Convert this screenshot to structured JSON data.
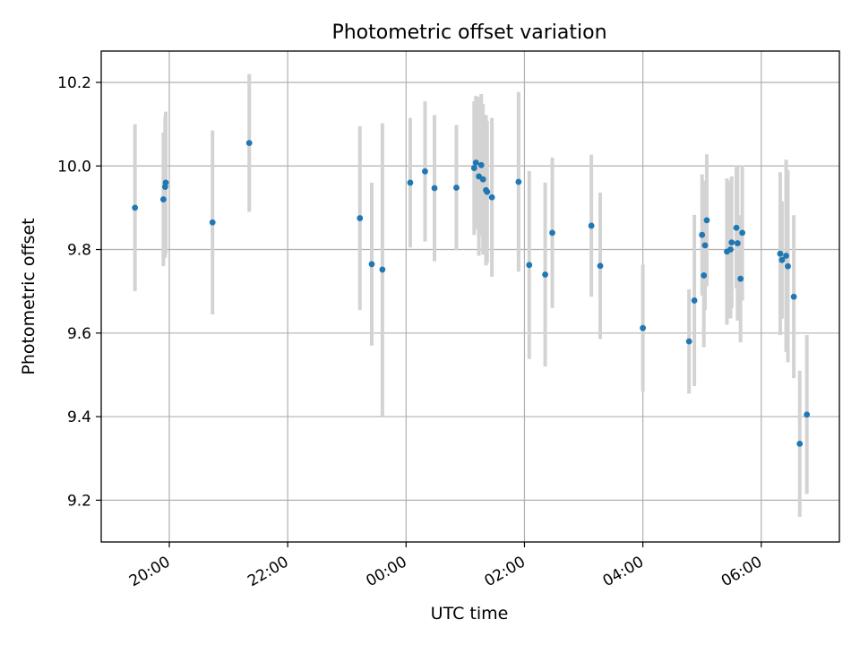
{
  "chart_data": {
    "type": "scatter",
    "title": "Photometric offset variation",
    "xlabel": "UTC time",
    "ylabel": "Photometric offset",
    "x_unit": "hours since midnight UTC (negative = previous day)",
    "xlim": [
      -5.15,
      7.32
    ],
    "ylim": [
      9.1,
      10.275
    ],
    "x_ticks": [
      {
        "value": -4,
        "label": "20:00"
      },
      {
        "value": -2,
        "label": "22:00"
      },
      {
        "value": 0,
        "label": "00:00"
      },
      {
        "value": 2,
        "label": "02:00"
      },
      {
        "value": 4,
        "label": "04:00"
      },
      {
        "value": 6,
        "label": "06:00"
      }
    ],
    "y_ticks": [
      {
        "value": 9.2,
        "label": "9.2"
      },
      {
        "value": 9.4,
        "label": "9.4"
      },
      {
        "value": 9.6,
        "label": "9.6"
      },
      {
        "value": 9.8,
        "label": "9.8"
      },
      {
        "value": 10.0,
        "label": "10.0"
      },
      {
        "value": 10.2,
        "label": "10.2"
      }
    ],
    "grid": true,
    "marker_color": "#1f77b4",
    "errorbar_color": "#d3d3d3",
    "points": [
      {
        "x": -4.58,
        "y": 9.9,
        "err": 0.2
      },
      {
        "x": -4.1,
        "y": 9.92,
        "err": 0.16
      },
      {
        "x": -4.07,
        "y": 9.95,
        "err": 0.17
      },
      {
        "x": -4.06,
        "y": 9.96,
        "err": 0.17
      },
      {
        "x": -3.27,
        "y": 9.865,
        "err": 0.22
      },
      {
        "x": -2.65,
        "y": 10.055,
        "err": 0.165
      },
      {
        "x": -0.78,
        "y": 9.875,
        "err": 0.22
      },
      {
        "x": -0.58,
        "y": 9.765,
        "err": 0.195
      },
      {
        "x": -0.4,
        "y": 9.752,
        "err": 0.35
      },
      {
        "x": 0.07,
        "y": 9.96,
        "err": 0.155
      },
      {
        "x": 0.32,
        "y": 9.987,
        "err": 0.168
      },
      {
        "x": 0.48,
        "y": 9.947,
        "err": 0.175
      },
      {
        "x": 0.85,
        "y": 9.948,
        "err": 0.15
      },
      {
        "x": 1.15,
        "y": 9.995,
        "err": 0.16
      },
      {
        "x": 1.18,
        "y": 10.008,
        "err": 0.16
      },
      {
        "x": 1.23,
        "y": 9.975,
        "err": 0.19
      },
      {
        "x": 1.27,
        "y": 10.002,
        "err": 0.17
      },
      {
        "x": 1.3,
        "y": 9.968,
        "err": 0.18
      },
      {
        "x": 1.35,
        "y": 9.942,
        "err": 0.18
      },
      {
        "x": 1.37,
        "y": 9.938,
        "err": 0.17
      },
      {
        "x": 1.45,
        "y": 9.925,
        "err": 0.19
      },
      {
        "x": 1.9,
        "y": 9.962,
        "err": 0.215
      },
      {
        "x": 2.08,
        "y": 9.763,
        "err": 0.225
      },
      {
        "x": 2.35,
        "y": 9.74,
        "err": 0.22
      },
      {
        "x": 2.47,
        "y": 9.84,
        "err": 0.18
      },
      {
        "x": 3.13,
        "y": 9.857,
        "err": 0.17
      },
      {
        "x": 3.28,
        "y": 9.761,
        "err": 0.175
      },
      {
        "x": 4.0,
        "y": 9.612,
        "err": 0.152
      },
      {
        "x": 4.78,
        "y": 9.58,
        "err": 0.125
      },
      {
        "x": 4.87,
        "y": 9.678,
        "err": 0.205
      },
      {
        "x": 5.0,
        "y": 9.835,
        "err": 0.145
      },
      {
        "x": 5.03,
        "y": 9.738,
        "err": 0.172
      },
      {
        "x": 5.05,
        "y": 9.81,
        "err": 0.155
      },
      {
        "x": 5.08,
        "y": 9.87,
        "err": 0.158
      },
      {
        "x": 5.42,
        "y": 9.795,
        "err": 0.175
      },
      {
        "x": 5.48,
        "y": 9.8,
        "err": 0.165
      },
      {
        "x": 5.5,
        "y": 9.817,
        "err": 0.158
      },
      {
        "x": 5.58,
        "y": 9.852,
        "err": 0.145
      },
      {
        "x": 5.6,
        "y": 9.815,
        "err": 0.185
      },
      {
        "x": 5.65,
        "y": 9.73,
        "err": 0.152
      },
      {
        "x": 5.68,
        "y": 9.84,
        "err": 0.162
      },
      {
        "x": 6.32,
        "y": 9.79,
        "err": 0.195
      },
      {
        "x": 6.35,
        "y": 9.775,
        "err": 0.14
      },
      {
        "x": 6.42,
        "y": 9.785,
        "err": 0.23
      },
      {
        "x": 6.45,
        "y": 9.76,
        "err": 0.23
      },
      {
        "x": 6.55,
        "y": 9.687,
        "err": 0.195
      },
      {
        "x": 6.65,
        "y": 9.335,
        "err": 0.175
      },
      {
        "x": 6.77,
        "y": 9.405,
        "err": 0.19
      }
    ]
  }
}
